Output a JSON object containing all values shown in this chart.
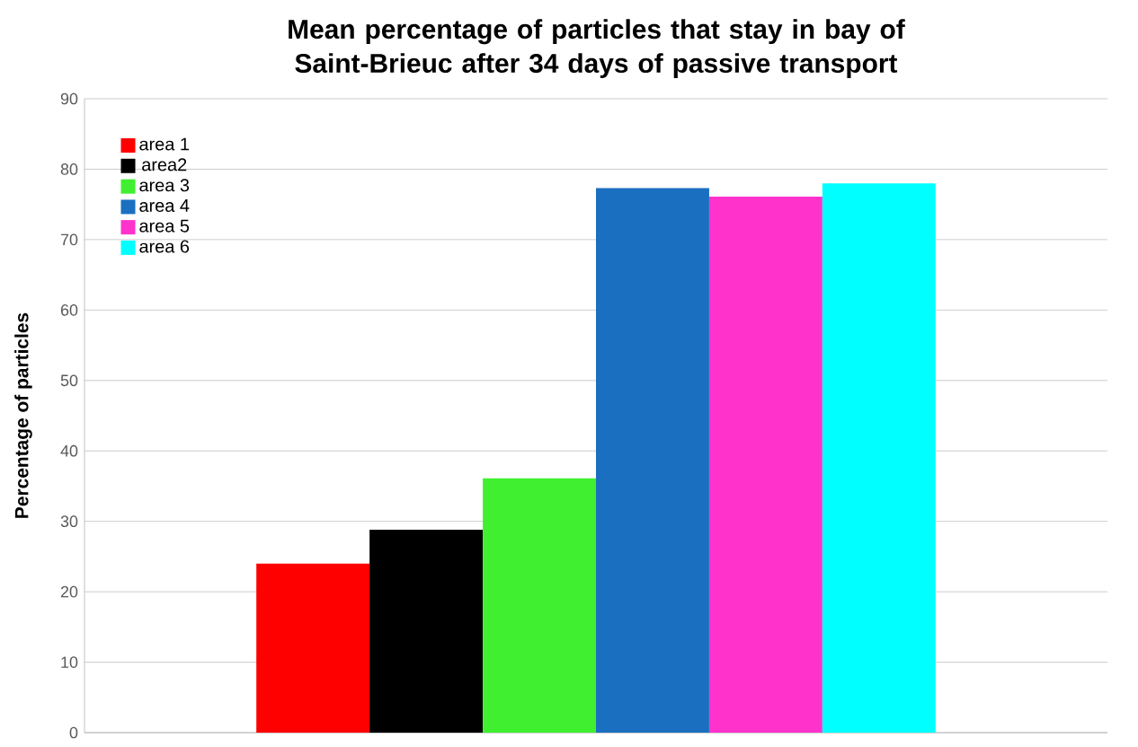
{
  "chart_data": {
    "type": "bar",
    "title": "Mean percentage of particles that stay in bay of Saint-Brieuc after 34 days of passive transport",
    "ylabel": "Percentage of particles",
    "categories": [
      null
    ],
    "series": [
      {
        "name": "area 1",
        "color": "#ff0000",
        "values": [
          24
        ]
      },
      {
        "name": "area2",
        "color": "#000000",
        "values": [
          28.8
        ]
      },
      {
        "name": "area 3",
        "color": "#40f030",
        "values": [
          36.1
        ]
      },
      {
        "name": "area 4",
        "color": "#1a6fc0",
        "values": [
          77.3
        ]
      },
      {
        "name": "area 5",
        "color": "#ff33cc",
        "values": [
          76.1
        ]
      },
      {
        "name": "area 6",
        "color": "#00ffff",
        "values": [
          78
        ]
      }
    ],
    "ylim": [
      0,
      90
    ],
    "yticks": [
      0,
      10,
      20,
      30,
      40,
      50,
      60,
      70,
      80,
      90
    ],
    "grid": "y",
    "legend": "top left"
  }
}
